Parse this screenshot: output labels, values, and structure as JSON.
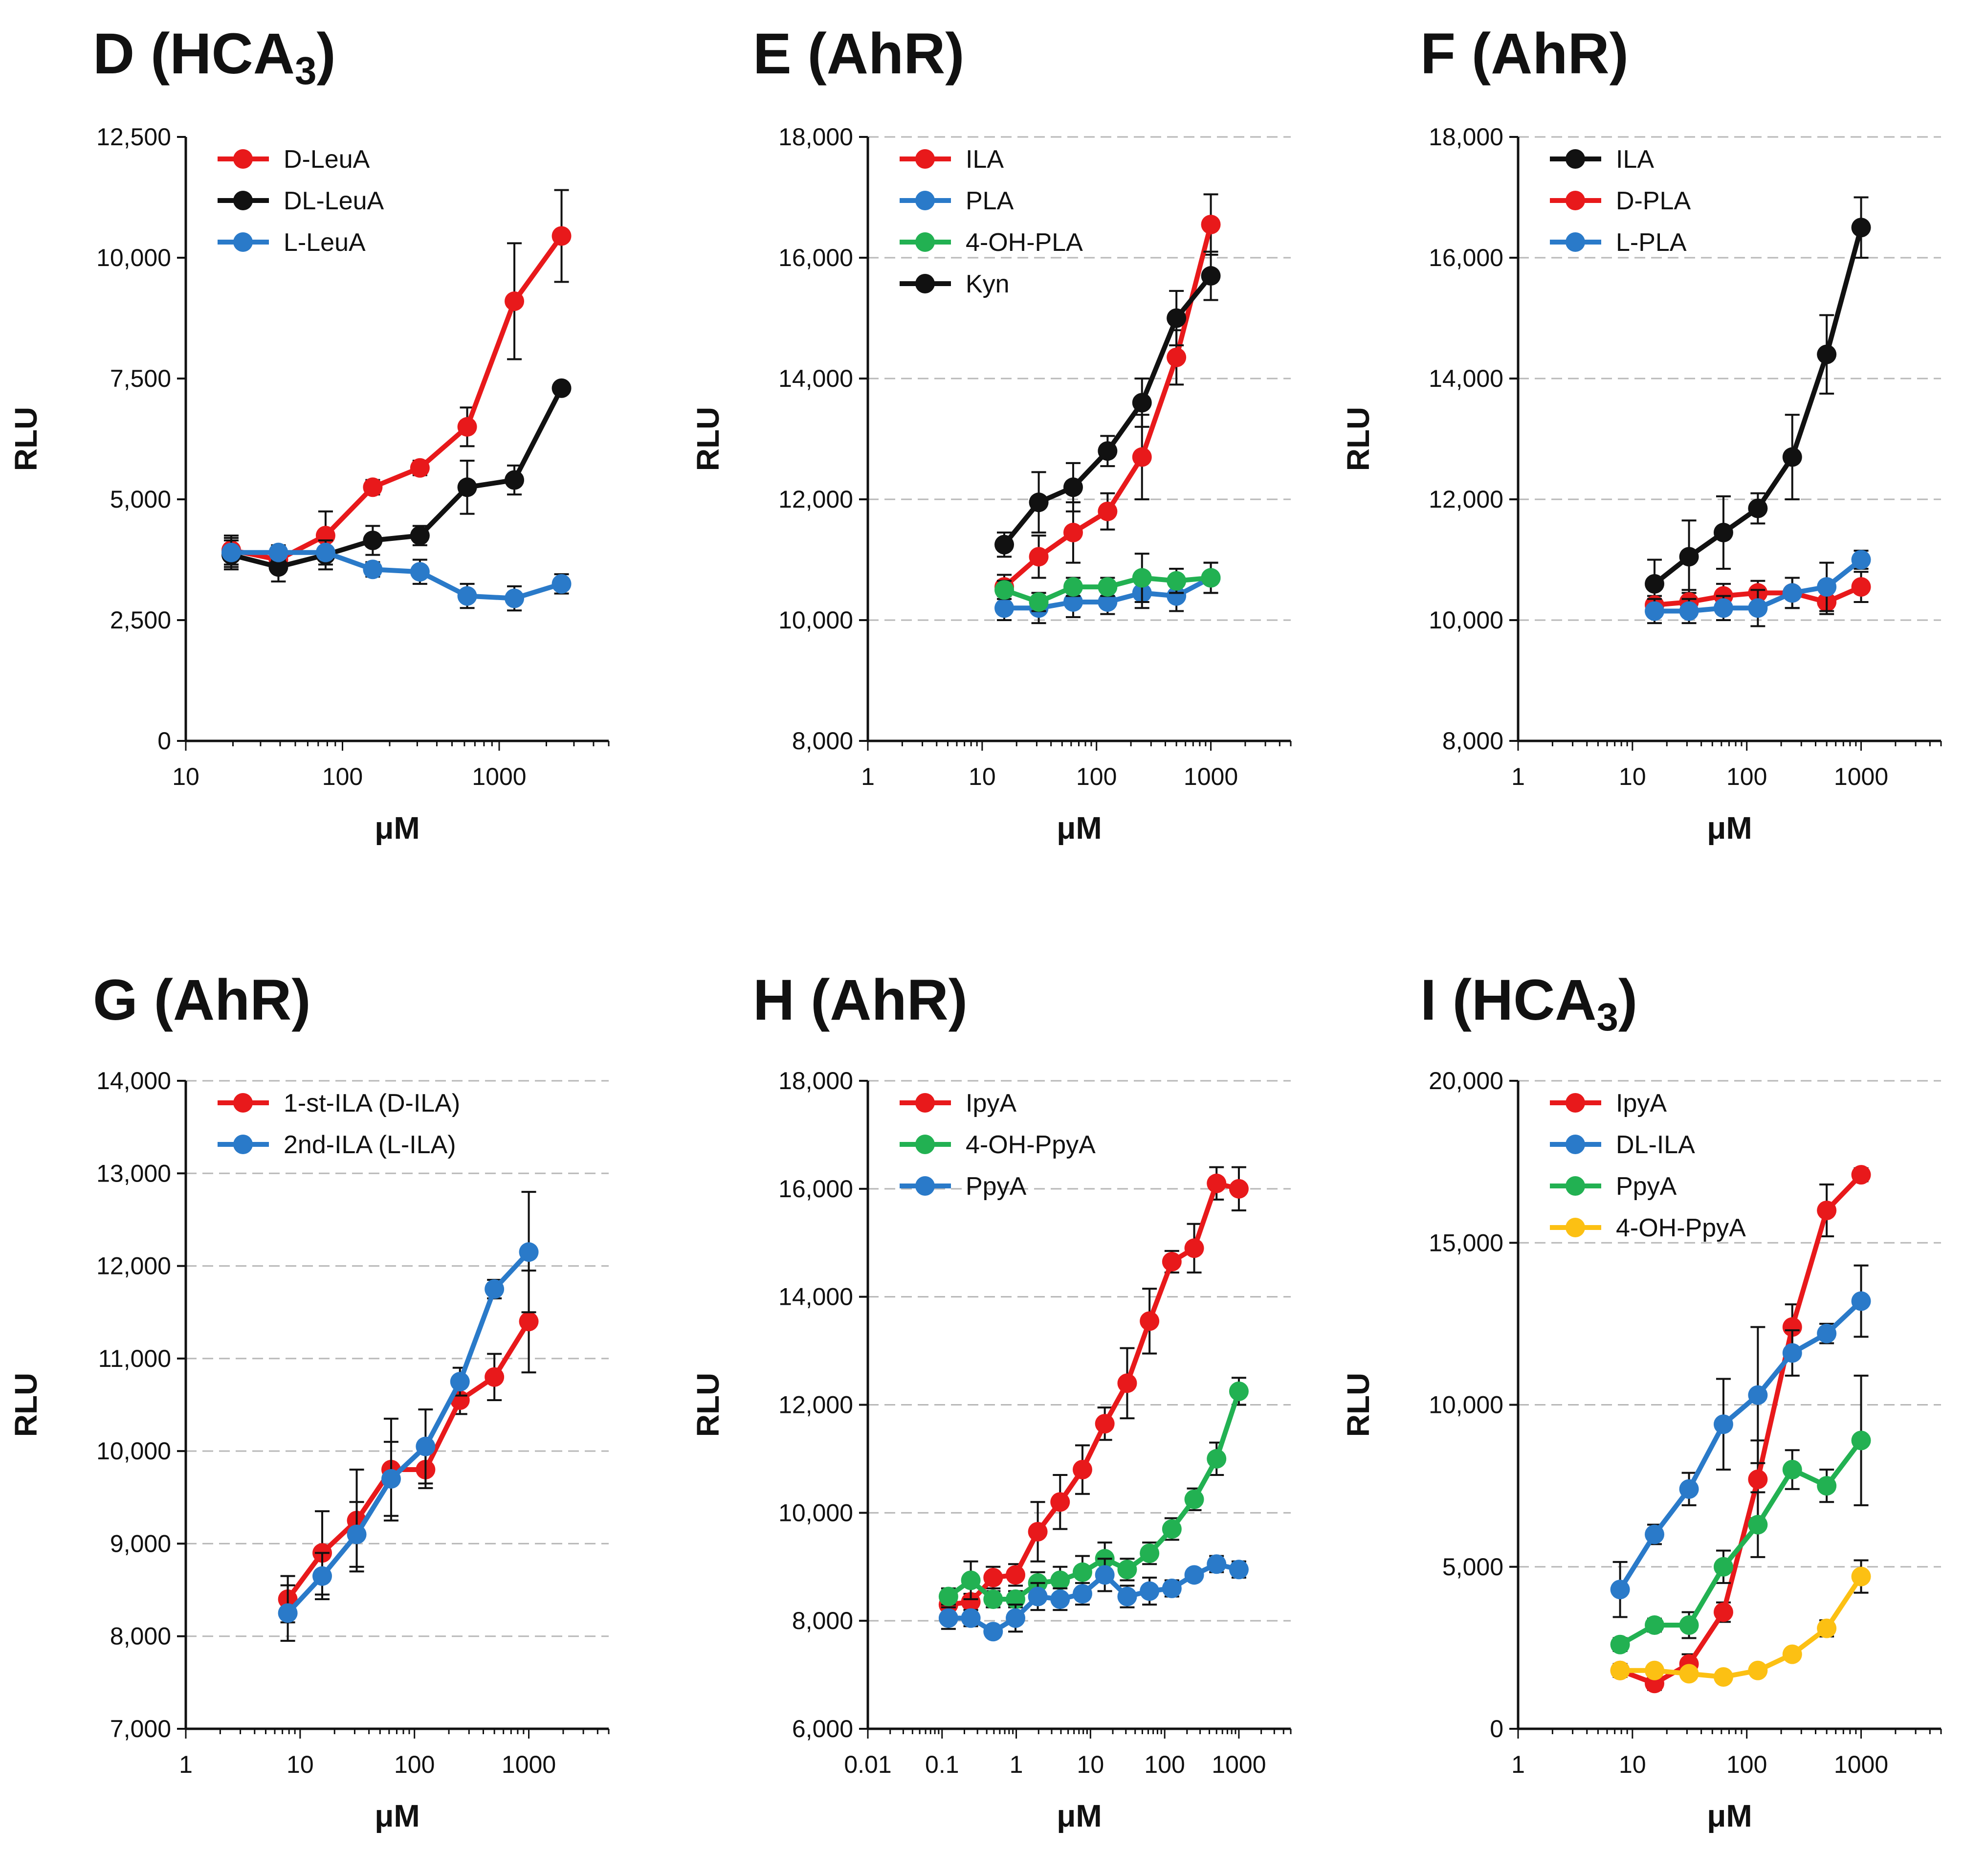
{
  "figure": {
    "x_label": "μM",
    "y_label": "RLU"
  },
  "chart_data": [
    {
      "id": "D",
      "type": "line",
      "title": "D (HCA",
      "title_sub": "3",
      "title_close": ")",
      "xlabel": "μM",
      "ylabel": "RLU",
      "xscale": "log",
      "xlim": [
        10,
        5000
      ],
      "ylim": [
        0,
        12500
      ],
      "yticks": [
        0,
        2500,
        5000,
        7500,
        10000,
        12500
      ],
      "ytick_labels": [
        "0",
        "2,500",
        "5,000",
        "7,500",
        "10,000",
        "12,500"
      ],
      "xticks": [
        10,
        100,
        1000
      ],
      "xtick_labels": [
        "10",
        "100",
        "1000"
      ],
      "grid": "none",
      "legend_position": "top-left",
      "series": [
        {
          "name": "D-LeuA",
          "color": "#e8191b",
          "x": [
            19.5,
            39,
            78,
            156,
            312,
            625,
            1250,
            2500
          ],
          "y": [
            3950,
            3750,
            4250,
            5250,
            5650,
            6500,
            9100,
            10450
          ],
          "err": [
            300,
            250,
            500,
            150,
            150,
            400,
            1200,
            950
          ]
        },
        {
          "name": "DL-LeuA",
          "color": "#111111",
          "x": [
            19.5,
            39,
            78,
            156,
            312,
            625,
            1250,
            2500
          ],
          "y": [
            3850,
            3600,
            3850,
            4150,
            4250,
            5250,
            5400,
            7300
          ],
          "err": [
            300,
            300,
            300,
            300,
            200,
            550,
            300,
            100
          ]
        },
        {
          "name": "L-LeuA",
          "color": "#2a7ac9",
          "x": [
            19.5,
            39,
            78,
            156,
            312,
            625,
            1250,
            2500
          ],
          "y": [
            3900,
            3900,
            3900,
            3550,
            3500,
            3000,
            2950,
            3250
          ],
          "err": [
            300,
            150,
            250,
            150,
            250,
            250,
            250,
            200
          ]
        }
      ]
    },
    {
      "id": "E",
      "type": "line",
      "title": "E (AhR)",
      "xlabel": "μM",
      "ylabel": "RLU",
      "xscale": "log",
      "xlim": [
        1,
        5000
      ],
      "ylim": [
        8000,
        18000
      ],
      "yticks": [
        8000,
        10000,
        12000,
        14000,
        16000,
        18000
      ],
      "ytick_labels": [
        "8,000",
        "10,000",
        "12,000",
        "14,000",
        "16,000",
        "18,000"
      ],
      "xticks": [
        1,
        10,
        100,
        1000
      ],
      "xtick_labels": [
        "1",
        "10",
        "100",
        "1000"
      ],
      "grid": "horizontal-dashed",
      "legend_position": "top-left",
      "series": [
        {
          "name": "ILA",
          "color": "#e8191b",
          "x": [
            15.6,
            31.25,
            62.5,
            125,
            250,
            500,
            1000
          ],
          "y": [
            10550,
            11050,
            11450,
            11800,
            12700,
            14350,
            16550
          ],
          "err": [
            200,
            350,
            500,
            300,
            700,
            450,
            500
          ]
        },
        {
          "name": "PLA",
          "color": "#2a7ac9",
          "x": [
            15.6,
            31.25,
            62.5,
            125,
            250,
            500,
            1000
          ],
          "y": [
            10200,
            10200,
            10300,
            10300,
            10450,
            10400,
            10700
          ],
          "err": [
            200,
            250,
            250,
            200,
            250,
            250,
            250
          ]
        },
        {
          "name": "4-OH-PLA",
          "color": "#22b152",
          "x": [
            15.6,
            31.25,
            62.5,
            125,
            250,
            500,
            1000
          ],
          "y": [
            10500,
            10300,
            10550,
            10550,
            10700,
            10650,
            10700
          ],
          "err": [
            150,
            150,
            150,
            150,
            400,
            200,
            250
          ]
        },
        {
          "name": "Kyn",
          "color": "#111111",
          "x": [
            15.6,
            31.25,
            62.5,
            125,
            250,
            500,
            1000
          ],
          "y": [
            11250,
            11950,
            12200,
            12800,
            13600,
            15000,
            15700
          ],
          "err": [
            200,
            500,
            400,
            250,
            400,
            450,
            400
          ]
        }
      ]
    },
    {
      "id": "F",
      "type": "line",
      "title": "F (AhR)",
      "xlabel": "μM",
      "ylabel": "RLU",
      "xscale": "log",
      "xlim": [
        1,
        5000
      ],
      "ylim": [
        8000,
        18000
      ],
      "yticks": [
        8000,
        10000,
        12000,
        14000,
        16000,
        18000
      ],
      "ytick_labels": [
        "8,000",
        "10,000",
        "12,000",
        "14,000",
        "16,000",
        "18,000"
      ],
      "xticks": [
        1,
        10,
        100,
        1000
      ],
      "xtick_labels": [
        "1",
        "10",
        "100",
        "1000"
      ],
      "grid": "horizontal-dashed",
      "legend_position": "top-left",
      "series": [
        {
          "name": "ILA",
          "color": "#111111",
          "x": [
            15.6,
            31.25,
            62.5,
            125,
            250,
            500,
            1000
          ],
          "y": [
            10600,
            11050,
            11450,
            11850,
            12700,
            14400,
            16500
          ],
          "err": [
            400,
            600,
            600,
            250,
            700,
            650,
            500
          ]
        },
        {
          "name": "D-PLA",
          "color": "#e8191b",
          "x": [
            15.6,
            31.25,
            62.5,
            125,
            250,
            500,
            1000
          ],
          "y": [
            10250,
            10300,
            10400,
            10450,
            10450,
            10300,
            10550
          ],
          "err": [
            150,
            200,
            200,
            200,
            250,
            200,
            250
          ]
        },
        {
          "name": "L-PLA",
          "color": "#2a7ac9",
          "x": [
            15.6,
            31.25,
            62.5,
            125,
            250,
            500,
            1000
          ],
          "y": [
            10150,
            10150,
            10200,
            10200,
            10450,
            10550,
            11000
          ],
          "err": [
            200,
            200,
            200,
            300,
            250,
            400,
            150
          ]
        }
      ]
    },
    {
      "id": "G",
      "type": "line",
      "title": "G (AhR)",
      "xlabel": "μM",
      "ylabel": "RLU",
      "xscale": "log",
      "xlim": [
        1,
        5000
      ],
      "ylim": [
        7000,
        14000
      ],
      "yticks": [
        7000,
        8000,
        9000,
        10000,
        11000,
        12000,
        13000,
        14000
      ],
      "ytick_labels": [
        "7,000",
        "8,000",
        "9,000",
        "10,000",
        "11,000",
        "12,000",
        "13,000",
        "14,000"
      ],
      "xticks": [
        1,
        10,
        100,
        1000
      ],
      "xtick_labels": [
        "1",
        "10",
        "100",
        "1000"
      ],
      "grid": "horizontal-dashed",
      "legend_position": "top-left",
      "series": [
        {
          "name": "1-st-ILA (D-ILA)",
          "color": "#e8191b",
          "x": [
            7.8,
            15.6,
            31.25,
            62.5,
            125,
            250,
            500,
            1000
          ],
          "y": [
            8400,
            8900,
            9250,
            9800,
            9800,
            10550,
            10800,
            11400
          ],
          "err": [
            250,
            450,
            550,
            550,
            200,
            150,
            250,
            550
          ]
        },
        {
          "name": "2nd-ILA (L-ILA)",
          "color": "#2a7ac9",
          "x": [
            7.8,
            15.6,
            31.25,
            62.5,
            125,
            250,
            500,
            1000
          ],
          "y": [
            8250,
            8650,
            9100,
            9700,
            10050,
            10750,
            11750,
            12150
          ],
          "err": [
            300,
            250,
            350,
            400,
            400,
            150,
            100,
            650
          ]
        }
      ]
    },
    {
      "id": "H",
      "type": "line",
      "title": "H (AhR)",
      "xlabel": "μM",
      "ylabel": "RLU",
      "xscale": "log",
      "xlim": [
        0.01,
        5000
      ],
      "ylim": [
        6000,
        18000
      ],
      "yticks": [
        6000,
        8000,
        10000,
        12000,
        14000,
        16000,
        18000
      ],
      "ytick_labels": [
        "6,000",
        "8,000",
        "10,000",
        "12,000",
        "14,000",
        "16,000",
        "18,000"
      ],
      "xticks": [
        0.01,
        0.1,
        1,
        10,
        100,
        1000
      ],
      "xtick_labels": [
        "0.01",
        "0.1",
        "1",
        "10",
        "100",
        "1000"
      ],
      "grid": "horizontal-dashed",
      "legend_position": "top-left",
      "series": [
        {
          "name": "IpyA",
          "color": "#e8191b",
          "x": [
            0.122,
            0.244,
            0.488,
            0.977,
            1.95,
            3.9,
            7.8,
            15.6,
            31.25,
            62.5,
            125,
            250,
            500,
            1000
          ],
          "y": [
            8300,
            8350,
            8800,
            8850,
            9650,
            10200,
            10800,
            11650,
            12400,
            13550,
            14650,
            14900,
            16100,
            16000
          ],
          "err": [
            150,
            150,
            200,
            200,
            550,
            500,
            450,
            300,
            650,
            600,
            200,
            450,
            300,
            400
          ]
        },
        {
          "name": "4-OH-PpyA",
          "color": "#22b152",
          "x": [
            0.122,
            0.244,
            0.488,
            0.977,
            1.95,
            3.9,
            7.8,
            15.6,
            31.25,
            62.5,
            125,
            250,
            500,
            1000
          ],
          "y": [
            8450,
            8750,
            8400,
            8400,
            8700,
            8750,
            8900,
            9150,
            8950,
            9250,
            9700,
            10250,
            11000,
            12250
          ],
          "err": [
            150,
            350,
            150,
            150,
            200,
            250,
            300,
            300,
            200,
            200,
            200,
            200,
            300,
            250
          ]
        },
        {
          "name": "PpyA",
          "color": "#2a7ac9",
          "x": [
            0.122,
            0.244,
            0.488,
            0.977,
            1.95,
            3.9,
            7.8,
            15.6,
            31.25,
            62.5,
            125,
            250,
            500,
            1000
          ],
          "y": [
            8050,
            8050,
            7800,
            8050,
            8450,
            8400,
            8500,
            8850,
            8450,
            8550,
            8600,
            8850,
            9050,
            8950
          ],
          "err": [
            200,
            150,
            100,
            250,
            250,
            200,
            200,
            300,
            200,
            250,
            150,
            100,
            150,
            150
          ]
        }
      ]
    },
    {
      "id": "I",
      "type": "line",
      "title": "I (HCA",
      "title_sub": "3",
      "title_close": ")",
      "xlabel": "μM",
      "ylabel": "RLU",
      "xscale": "log",
      "xlim": [
        1,
        5000
      ],
      "ylim": [
        0,
        20000
      ],
      "yticks": [
        0,
        5000,
        10000,
        15000,
        20000
      ],
      "ytick_labels": [
        "0",
        "5,000",
        "10,000",
        "15,000",
        "20,000"
      ],
      "xticks": [
        1,
        10,
        100,
        1000
      ],
      "xtick_labels": [
        "1",
        "10",
        "100",
        "1000"
      ],
      "grid": "horizontal-dashed",
      "legend_position": "top-left",
      "series": [
        {
          "name": "IpyA",
          "color": "#e8191b",
          "x": [
            7.8,
            15.6,
            31.25,
            62.5,
            125,
            250,
            500,
            1000
          ],
          "y": [
            1800,
            1400,
            2000,
            3600,
            7700,
            12400,
            16000,
            17100
          ],
          "err": [
            200,
            200,
            300,
            300,
            1200,
            700,
            800,
            200
          ]
        },
        {
          "name": "DL-ILA",
          "color": "#2a7ac9",
          "x": [
            7.8,
            15.6,
            31.25,
            62.5,
            125,
            250,
            500,
            1000
          ],
          "y": [
            4300,
            6000,
            7400,
            9400,
            10300,
            11600,
            12200,
            13200
          ],
          "err": [
            850,
            300,
            500,
            1400,
            2100,
            700,
            300,
            1100
          ]
        },
        {
          "name": "PpyA",
          "color": "#22b152",
          "x": [
            7.8,
            15.6,
            31.25,
            62.5,
            125,
            250,
            500,
            1000
          ],
          "y": [
            2600,
            3200,
            3200,
            5000,
            6300,
            8000,
            7500,
            8900
          ],
          "err": [
            200,
            200,
            400,
            500,
            1000,
            600,
            500,
            2000
          ]
        },
        {
          "name": "4-OH-PpyA",
          "color": "#fcc013",
          "x": [
            7.8,
            15.6,
            31.25,
            62.5,
            125,
            250,
            500,
            1000
          ],
          "y": [
            1800,
            1800,
            1700,
            1600,
            1800,
            2300,
            3100,
            4700
          ],
          "err": [
            150,
            150,
            150,
            100,
            150,
            150,
            250,
            500
          ]
        }
      ]
    }
  ]
}
